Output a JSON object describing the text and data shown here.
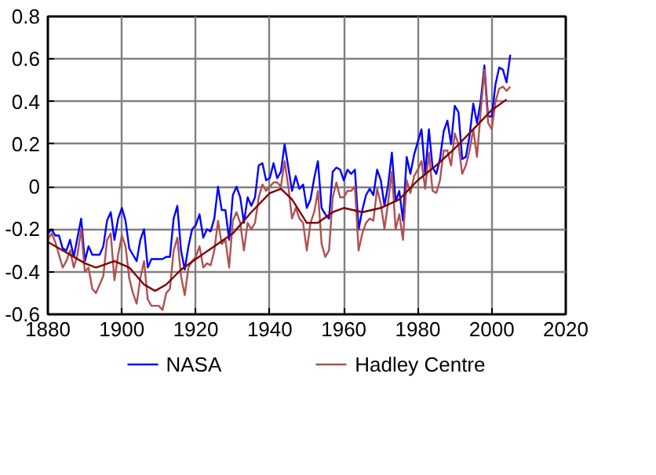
{
  "chart_data": {
    "type": "line",
    "x": [
      1880,
      1881,
      1882,
      1883,
      1884,
      1885,
      1886,
      1887,
      1888,
      1889,
      1890,
      1891,
      1892,
      1893,
      1894,
      1895,
      1896,
      1897,
      1898,
      1899,
      1900,
      1901,
      1902,
      1903,
      1904,
      1905,
      1906,
      1907,
      1908,
      1909,
      1910,
      1911,
      1912,
      1913,
      1914,
      1915,
      1916,
      1917,
      1918,
      1919,
      1920,
      1921,
      1922,
      1923,
      1924,
      1925,
      1926,
      1927,
      1928,
      1929,
      1930,
      1931,
      1932,
      1933,
      1934,
      1935,
      1936,
      1937,
      1938,
      1939,
      1940,
      1941,
      1942,
      1943,
      1944,
      1945,
      1946,
      1947,
      1948,
      1949,
      1950,
      1951,
      1952,
      1953,
      1954,
      1955,
      1956,
      1957,
      1958,
      1959,
      1960,
      1961,
      1962,
      1963,
      1964,
      1965,
      1966,
      1967,
      1968,
      1969,
      1970,
      1971,
      1972,
      1973,
      1974,
      1975,
      1976,
      1977,
      1978,
      1979,
      1980,
      1981,
      1982,
      1983,
      1984,
      1985,
      1986,
      1987,
      1988,
      1989,
      1990,
      1991,
      1992,
      1993,
      1994,
      1995,
      1996,
      1997,
      1998,
      1999,
      2000,
      2001,
      2002,
      2003,
      2004,
      2005
    ],
    "series": [
      {
        "name": "NASA",
        "color": "#0000ff",
        "values": [
          -0.22,
          -0.2,
          -0.23,
          -0.23,
          -0.29,
          -0.3,
          -0.25,
          -0.33,
          -0.24,
          -0.15,
          -0.35,
          -0.28,
          -0.32,
          -0.32,
          -0.32,
          -0.28,
          -0.16,
          -0.12,
          -0.25,
          -0.15,
          -0.1,
          -0.16,
          -0.29,
          -0.32,
          -0.35,
          -0.25,
          -0.2,
          -0.38,
          -0.34,
          -0.34,
          -0.34,
          -0.34,
          -0.33,
          -0.33,
          -0.15,
          -0.09,
          -0.3,
          -0.39,
          -0.28,
          -0.2,
          -0.18,
          -0.13,
          -0.24,
          -0.2,
          -0.21,
          -0.15,
          0.0,
          -0.11,
          -0.11,
          -0.25,
          -0.04,
          0.0,
          -0.05,
          -0.17,
          -0.05,
          -0.09,
          -0.05,
          0.1,
          0.11,
          0.03,
          0.04,
          0.11,
          0.04,
          0.07,
          0.2,
          0.09,
          -0.02,
          0.05,
          -0.01,
          0.01,
          -0.1,
          -0.06,
          0.04,
          0.12,
          -0.1,
          -0.13,
          -0.15,
          0.07,
          0.09,
          0.08,
          0.03,
          0.08,
          0.06,
          0.08,
          -0.2,
          -0.11,
          -0.04,
          -0.01,
          -0.04,
          0.08,
          0.03,
          -0.09,
          0.01,
          0.16,
          -0.07,
          -0.02,
          -0.16,
          0.14,
          0.06,
          0.15,
          0.21,
          0.27,
          0.06,
          0.27,
          0.09,
          0.06,
          0.13,
          0.26,
          0.31,
          0.2,
          0.38,
          0.35,
          0.13,
          0.14,
          0.24,
          0.39,
          0.3,
          0.4,
          0.57,
          0.33,
          0.33,
          0.48,
          0.56,
          0.55,
          0.49,
          0.62
        ]
      },
      {
        "name": "Hadley Centre",
        "color": "#b05050",
        "values": [
          -0.25,
          -0.22,
          -0.26,
          -0.32,
          -0.38,
          -0.35,
          -0.3,
          -0.38,
          -0.32,
          -0.2,
          -0.4,
          -0.38,
          -0.48,
          -0.5,
          -0.46,
          -0.42,
          -0.25,
          -0.22,
          -0.44,
          -0.32,
          -0.23,
          -0.28,
          -0.43,
          -0.5,
          -0.55,
          -0.43,
          -0.35,
          -0.53,
          -0.56,
          -0.56,
          -0.56,
          -0.58,
          -0.5,
          -0.48,
          -0.3,
          -0.24,
          -0.42,
          -0.51,
          -0.38,
          -0.35,
          -0.33,
          -0.28,
          -0.38,
          -0.36,
          -0.37,
          -0.3,
          -0.16,
          -0.27,
          -0.25,
          -0.38,
          -0.16,
          -0.12,
          -0.17,
          -0.3,
          -0.17,
          -0.2,
          -0.17,
          -0.05,
          0.01,
          -0.02,
          0.0,
          0.02,
          0.02,
          0.0,
          0.12,
          0.0,
          -0.15,
          -0.1,
          -0.15,
          -0.17,
          -0.3,
          -0.17,
          -0.12,
          -0.02,
          -0.27,
          -0.33,
          -0.3,
          -0.05,
          0.02,
          -0.05,
          -0.05,
          -0.02,
          -0.02,
          0.0,
          -0.3,
          -0.22,
          -0.17,
          -0.15,
          -0.16,
          -0.01,
          -0.08,
          -0.2,
          -0.07,
          0.07,
          -0.2,
          -0.13,
          -0.25,
          0.03,
          -0.03,
          0.05,
          0.08,
          0.12,
          -0.01,
          0.16,
          -0.02,
          -0.03,
          0.03,
          0.17,
          0.17,
          0.1,
          0.25,
          0.2,
          0.06,
          0.1,
          0.17,
          0.27,
          0.14,
          0.35,
          0.55,
          0.3,
          0.27,
          0.4,
          0.46,
          0.47,
          0.45,
          0.47
        ]
      },
      {
        "color": "#800000",
        "x": [
          1880,
          1885,
          1890,
          1893,
          1898,
          1902,
          1906,
          1909,
          1912,
          1916,
          1920,
          1925,
          1930,
          1935,
          1940,
          1943,
          1946,
          1950,
          1953,
          1957,
          1960,
          1965,
          1970,
          1975,
          1980,
          1985,
          1990,
          1995,
          2000,
          2004
        ],
        "values": [
          -0.26,
          -0.31,
          -0.36,
          -0.38,
          -0.35,
          -0.38,
          -0.46,
          -0.49,
          -0.46,
          -0.39,
          -0.34,
          -0.28,
          -0.22,
          -0.12,
          -0.03,
          -0.01,
          -0.06,
          -0.17,
          -0.17,
          -0.12,
          -0.1,
          -0.12,
          -0.1,
          -0.06,
          0.03,
          0.1,
          0.18,
          0.27,
          0.36,
          0.41
        ]
      }
    ],
    "xlim": [
      1880,
      2020
    ],
    "xticks": [
      1880,
      1900,
      1920,
      1940,
      1960,
      1980,
      2000,
      2020
    ],
    "ylim": [
      -0.6,
      0.8
    ],
    "yticks": [
      -0.6,
      -0.4,
      -0.2,
      0,
      0.2,
      0.4,
      0.6,
      0.8
    ],
    "grid": true,
    "legend": "bottom",
    "line_style": "solid",
    "marker": "none"
  }
}
